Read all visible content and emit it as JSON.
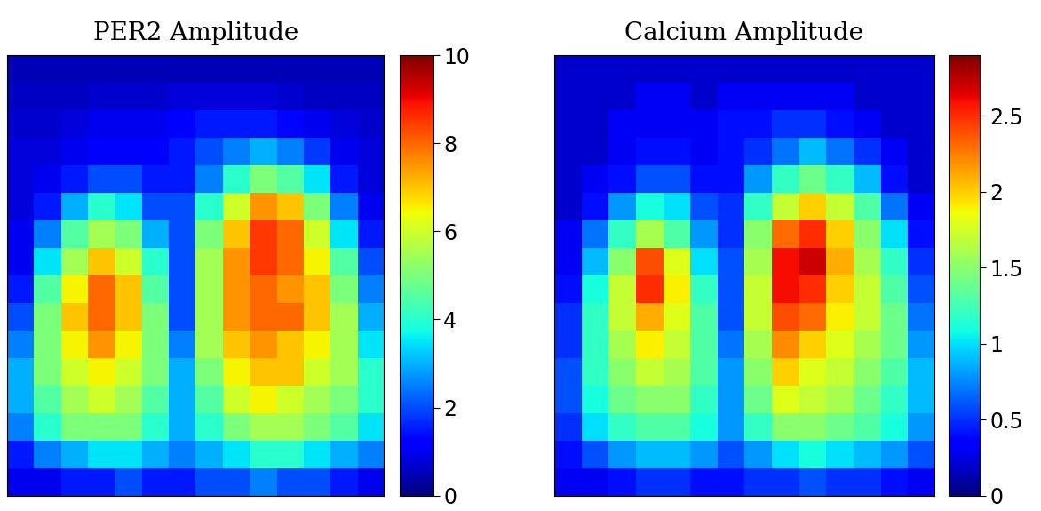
{
  "chart_data": [
    {
      "type": "heatmap",
      "title": "PER2 Amplitude",
      "tick_labels": false,
      "cells": [
        [
          0.5,
          0.5,
          0.5,
          0.5,
          0.5,
          0.5,
          0.5,
          0.5,
          0.5,
          0.5,
          0.5,
          0.5,
          0.5,
          0.5
        ],
        [
          0.6,
          0.6,
          0.6,
          0.7,
          0.7,
          0.7,
          0.8,
          0.8,
          0.8,
          0.8,
          0.7,
          0.6,
          0.6,
          0.6
        ],
        [
          0.7,
          0.7,
          0.8,
          1,
          1,
          1,
          1.2,
          1.5,
          1.5,
          1.5,
          1.3,
          1,
          0.8,
          0.7
        ],
        [
          0.8,
          0.8,
          1,
          1.2,
          1.2,
          1.2,
          1.5,
          2,
          2.5,
          3,
          2.5,
          1.8,
          1,
          0.8
        ],
        [
          0.8,
          1,
          1.5,
          2,
          2,
          1.5,
          1.5,
          2.5,
          4,
          5,
          4.5,
          3.5,
          1.5,
          0.8
        ],
        [
          0.8,
          1.5,
          3,
          4,
          3.5,
          2,
          2,
          4,
          6,
          7.5,
          7,
          5,
          2.5,
          1
        ],
        [
          1,
          2.5,
          4.5,
          5.5,
          5,
          3,
          2,
          5,
          7,
          8.5,
          8,
          6,
          3.5,
          1.5
        ],
        [
          1,
          3.5,
          5.5,
          7,
          6,
          4,
          2,
          5.5,
          7.5,
          8.5,
          8,
          6.5,
          4.5,
          2
        ],
        [
          1.5,
          4.5,
          6.5,
          8,
          7,
          4.5,
          2,
          5.5,
          7.5,
          8,
          7.5,
          7,
          5,
          2.5
        ],
        [
          2,
          5,
          7,
          8,
          7,
          5,
          2,
          5.5,
          7.5,
          8,
          8,
          7,
          5.5,
          3
        ],
        [
          2.5,
          5,
          6.5,
          7.5,
          6.5,
          5,
          2.5,
          5.5,
          7,
          7.5,
          7,
          6.5,
          5.5,
          3.5
        ],
        [
          3,
          5,
          6,
          6.5,
          6,
          5,
          3,
          5,
          6.5,
          7,
          7,
          6,
          5.5,
          4
        ],
        [
          3,
          4.5,
          5.5,
          6,
          5.5,
          4.5,
          3,
          4.5,
          6,
          6.5,
          6,
          5.5,
          5,
          4
        ],
        [
          2.5,
          4,
          5,
          5,
          5,
          4,
          3,
          4,
          5,
          5.5,
          5.5,
          5,
          4.5,
          3.5
        ],
        [
          1.5,
          2.5,
          3,
          3.5,
          3.5,
          3,
          2.5,
          3,
          3.5,
          4,
          4,
          3.5,
          3,
          2.5
        ],
        [
          1,
          1,
          1.5,
          1.5,
          2,
          1.5,
          1.5,
          2,
          2,
          2.5,
          2,
          2,
          1.5,
          1
        ]
      ],
      "colorbar_range": [
        0,
        10
      ],
      "colorbar_ticks": [
        0,
        2,
        4,
        6,
        8,
        10
      ]
    },
    {
      "type": "heatmap",
      "title": "Calcium Amplitude",
      "tick_labels": false,
      "cells": [
        [
          0.2,
          0.2,
          0.2,
          0.2,
          0.2,
          0.2,
          0.2,
          0.2,
          0.2,
          0.2,
          0.2,
          0.2,
          0.2,
          0.2
        ],
        [
          0.2,
          0.2,
          0.2,
          0.3,
          0.3,
          0.2,
          0.3,
          0.3,
          0.3,
          0.3,
          0.3,
          0.2,
          0.2,
          0.2
        ],
        [
          0.2,
          0.2,
          0.3,
          0.3,
          0.3,
          0.3,
          0.4,
          0.4,
          0.5,
          0.5,
          0.4,
          0.3,
          0.2,
          0.2
        ],
        [
          0.2,
          0.2,
          0.3,
          0.4,
          0.4,
          0.3,
          0.4,
          0.5,
          0.7,
          0.9,
          0.7,
          0.5,
          0.3,
          0.2
        ],
        [
          0.2,
          0.3,
          0.4,
          0.6,
          0.6,
          0.4,
          0.4,
          0.8,
          1.2,
          1.4,
          1.2,
          0.9,
          0.4,
          0.2
        ],
        [
          0.2,
          0.4,
          0.8,
          1.1,
          1.0,
          0.6,
          0.5,
          1.2,
          1.7,
          2.0,
          1.7,
          1.3,
          0.7,
          0.3
        ],
        [
          0.3,
          0.7,
          1.2,
          1.6,
          1.3,
          0.8,
          0.5,
          1.5,
          2.3,
          2.5,
          2.0,
          1.5,
          1.0,
          0.4
        ],
        [
          0.3,
          0.9,
          1.5,
          2.4,
          1.8,
          1.0,
          0.6,
          1.6,
          2.6,
          2.7,
          2.1,
          1.6,
          1.2,
          0.5
        ],
        [
          0.4,
          1.1,
          1.7,
          2.5,
          1.9,
          1.2,
          0.6,
          1.7,
          2.6,
          2.5,
          2.0,
          1.7,
          1.3,
          0.6
        ],
        [
          0.5,
          1.2,
          1.7,
          2.1,
          1.8,
          1.3,
          0.6,
          1.7,
          2.4,
          2.3,
          1.9,
          1.7,
          1.4,
          0.7
        ],
        [
          0.5,
          1.2,
          1.6,
          1.9,
          1.7,
          1.3,
          0.7,
          1.6,
          2.2,
          2.0,
          1.8,
          1.6,
          1.4,
          0.8
        ],
        [
          0.6,
          1.2,
          1.5,
          1.7,
          1.6,
          1.3,
          0.8,
          1.5,
          2.0,
          1.8,
          1.7,
          1.5,
          1.3,
          0.9
        ],
        [
          0.6,
          1.1,
          1.4,
          1.5,
          1.5,
          1.2,
          0.8,
          1.4,
          1.8,
          1.7,
          1.6,
          1.4,
          1.2,
          0.9
        ],
        [
          0.5,
          1.0,
          1.2,
          1.3,
          1.3,
          1.1,
          0.8,
          1.2,
          1.5,
          1.5,
          1.4,
          1.3,
          1.1,
          0.8
        ],
        [
          0.4,
          0.6,
          0.8,
          0.9,
          0.9,
          0.8,
          0.6,
          0.8,
          1.0,
          1.1,
          1.0,
          0.9,
          0.8,
          0.6
        ],
        [
          0.3,
          0.3,
          0.4,
          0.5,
          0.5,
          0.4,
          0.4,
          0.5,
          0.5,
          0.6,
          0.5,
          0.5,
          0.4,
          0.3
        ]
      ],
      "colorbar_range": [
        0,
        2.9
      ],
      "colorbar_ticks": [
        0,
        0.5,
        1,
        1.5,
        2,
        2.5
      ]
    }
  ]
}
